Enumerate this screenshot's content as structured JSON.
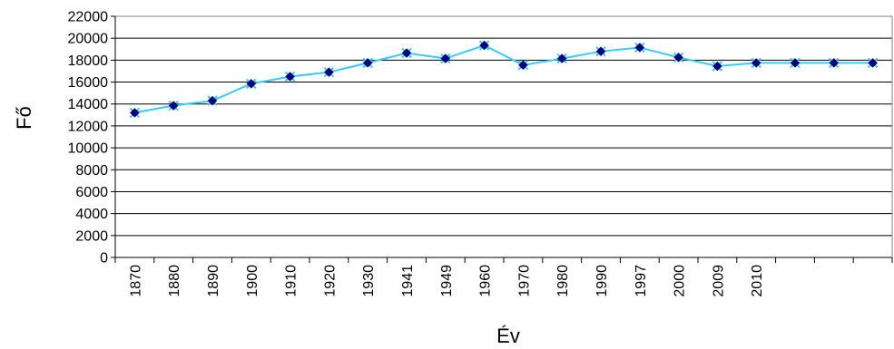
{
  "chart_data": {
    "type": "line",
    "title": "",
    "xlabel": "Év",
    "ylabel": "Fő",
    "ylim": [
      0,
      22000
    ],
    "y_ticks": [
      0,
      2000,
      4000,
      6000,
      8000,
      10000,
      12000,
      14000,
      16000,
      18000,
      20000,
      22000
    ],
    "categories": [
      "1870",
      "1880",
      "1890",
      "1900",
      "1910",
      "1920",
      "1930",
      "1941",
      "1949",
      "1960",
      "1970",
      "1980",
      "1990",
      "1997",
      "2000",
      "2009",
      "2010",
      "",
      "",
      ""
    ],
    "grid": true,
    "series": [
      {
        "values": [
          13200,
          13850,
          14300,
          15850,
          16500,
          16900,
          17750,
          18650,
          18150,
          19350,
          17550,
          18150,
          18800,
          19150,
          18250,
          17450,
          17750,
          17750,
          17750,
          17750
        ],
        "color": "#33ccff",
        "marker_color": "#000080"
      }
    ]
  }
}
